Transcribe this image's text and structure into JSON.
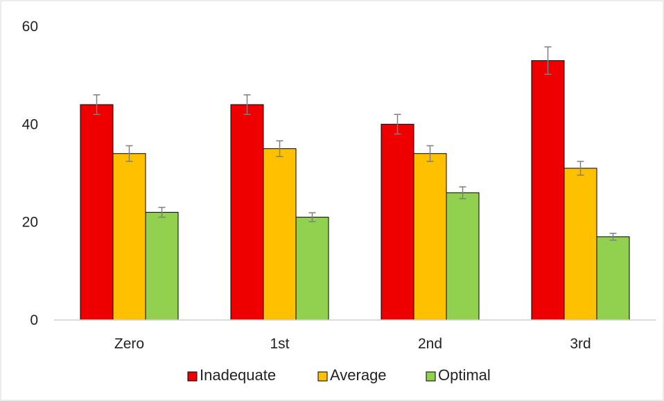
{
  "chart_data": {
    "type": "bar",
    "title": "",
    "xlabel": "",
    "ylabel": "",
    "categories": [
      "Zero",
      "1st",
      "2nd",
      "3rd"
    ],
    "ylim": [
      0,
      60
    ],
    "yticks": [
      0,
      20,
      40,
      60
    ],
    "grid": false,
    "legend_position": "bottom",
    "error_bars": true,
    "series": [
      {
        "name": "Inadequate",
        "color": "#ee0000",
        "values": [
          44,
          44,
          40,
          53
        ],
        "errors": [
          2.0,
          2.0,
          2.0,
          2.8
        ]
      },
      {
        "name": "Average",
        "color": "#ffc000",
        "values": [
          34,
          35,
          34,
          31
        ],
        "errors": [
          1.6,
          1.6,
          1.6,
          1.4
        ]
      },
      {
        "name": "Optimal",
        "color": "#92d050",
        "values": [
          22,
          21,
          26,
          17
        ],
        "errors": [
          1.0,
          0.9,
          1.2,
          0.7
        ]
      }
    ]
  }
}
